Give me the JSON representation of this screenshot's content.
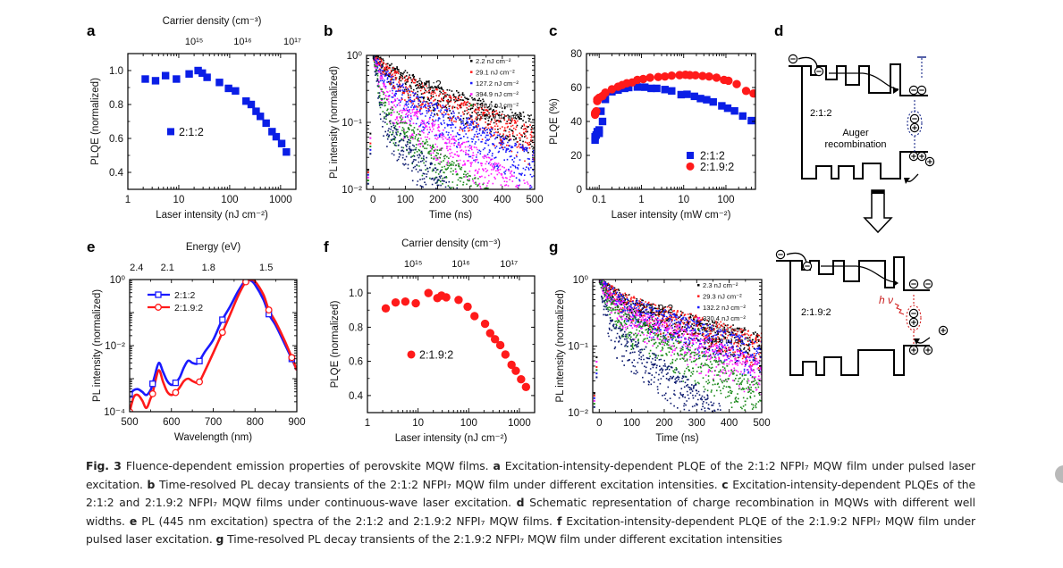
{
  "figure": {
    "panel_labels": [
      "a",
      "b",
      "c",
      "d",
      "e",
      "f",
      "g"
    ],
    "caption": {
      "fig_label": "Fig. 3",
      "segments": [
        {
          "bold": "",
          "text": " Fluence-dependent emission properties of perovskite MQW films. "
        },
        {
          "bold": "a",
          "text": " Excitation-intensity-dependent PLQE of the 2:1:2 NFPI₇ MQW film under pulsed laser excitation. "
        },
        {
          "bold": "b",
          "text": " Time-resolved PL decay transients of the 2:1:2 NFPI₇ MQW film under different excitation intensities. "
        },
        {
          "bold": "c",
          "text": " Excitation-intensity-dependent PLQEs of the 2:1:2 and 2:1.9:2 NFPI₇ MQW films under continuous-wave laser excitation. "
        },
        {
          "bold": "d",
          "text": " Schematic representation of charge recombination in MQWs with different well widths. "
        },
        {
          "bold": "e",
          "text": " PL (445 nm excitation) spectra of the 2:1:2 and 2:1.9:2 NFPI₇ MQW films. "
        },
        {
          "bold": "f",
          "text": " Excitation-intensity-dependent PLQE of the 2:1.9:2 NFPI₇ MQW film under pulsed laser excitation. "
        },
        {
          "bold": "g",
          "text": " Time-resolved PL decay transients of the 2:1.9:2 NFPI₇ MQW film under different excitation intensities"
        }
      ]
    },
    "diagram_d": {
      "top_label": "2:1:2",
      "top_annotation": "Auger\nrecombination",
      "bottom_label": "2:1.9:2",
      "photon_label": "h ν",
      "electron_symbol": "−",
      "hole_symbol": "+"
    }
  },
  "chart_data": [
    {
      "panel": "a",
      "type": "scatter",
      "xlabel": "Laser intensity (nJ cm⁻²)",
      "ylabel": "PLQE (normalized)",
      "top_xlabel": "Carrier density (cm⁻³)",
      "top_ticks": [
        "10¹⁵",
        "10¹⁶",
        "10¹⁷"
      ],
      "top_tick_x": [
        20,
        180,
        1700
      ],
      "xscale": "log",
      "xlim": [
        1,
        2000
      ],
      "ylim": [
        0.3,
        1.1
      ],
      "xticks": [
        1,
        10,
        100,
        1000
      ],
      "xticklabels": [
        "1",
        "10",
        "100",
        "1000"
      ],
      "yticks": [
        0.4,
        0.6,
        0.8,
        1.0
      ],
      "yticklabels": [
        "0.4",
        "0.6",
        "0.8",
        "1.0"
      ],
      "legend": [
        {
          "label": "2:1:2",
          "color": "#0a1ee6",
          "marker": "square"
        }
      ],
      "legend_position": "center-left",
      "series": [
        {
          "name": "2:1:2",
          "color": "#0a1ee6",
          "marker": "square",
          "x": [
            2.2,
            3.5,
            5.5,
            9,
            16,
            24,
            29,
            36,
            63,
            95,
            130,
            210,
            265,
            330,
            400,
            520,
            680,
            820,
            1050,
            1300
          ],
          "y": [
            0.95,
            0.94,
            0.97,
            0.95,
            0.98,
            1.0,
            0.985,
            0.96,
            0.93,
            0.895,
            0.88,
            0.82,
            0.8,
            0.76,
            0.73,
            0.69,
            0.64,
            0.61,
            0.57,
            0.52
          ]
        }
      ]
    },
    {
      "panel": "b",
      "type": "scatter",
      "xlabel": "Time (ns)",
      "ylabel": "PL intensity (normalized)",
      "xlim": [
        -20,
        500
      ],
      "ylim": [
        0.01,
        1
      ],
      "yscale": "log",
      "xticks": [
        0,
        100,
        200,
        300,
        400,
        500
      ],
      "xticklabels": [
        "0",
        "100",
        "200",
        "300",
        "400",
        "500"
      ],
      "yticks": [
        0.01,
        0.1,
        1
      ],
      "yticklabels": [
        "10⁻²",
        "10⁻¹",
        "10⁰"
      ],
      "annotation": "2:1:2",
      "legend_position": "top-right",
      "series": [
        {
          "name": "2.2 nJ cm⁻²",
          "color": "#000000",
          "tau_fast": 40,
          "a_fast": 0.45,
          "tau_slow": 260
        },
        {
          "name": "29.1 nJ cm⁻²",
          "color": "#ff1a1a",
          "tau_fast": 35,
          "a_fast": 0.5,
          "tau_slow": 230
        },
        {
          "name": "127.2 nJ cm⁻²",
          "color": "#1a1aff",
          "tau_fast": 25,
          "a_fast": 0.62,
          "tau_slow": 180
        },
        {
          "name": "394.9 nJ cm⁻²",
          "color": "#ff1aff",
          "tau_fast": 15,
          "a_fast": 0.75,
          "tau_slow": 140
        },
        {
          "name": "796.6 nJ cm⁻²",
          "color": "#1a8a1a",
          "tau_fast": 11,
          "a_fast": 0.83,
          "tau_slow": 110
        },
        {
          "name": "1259.0 nJ cm⁻²",
          "color": "#0c1a6e",
          "tau_fast": 9,
          "a_fast": 0.88,
          "tau_slow": 90
        }
      ]
    },
    {
      "panel": "c",
      "type": "scatter",
      "xlabel": "Laser intensity (mW cm⁻²)",
      "ylabel": "PLQE (%)",
      "xscale": "log",
      "xlim": [
        0.05,
        500
      ],
      "ylim": [
        0,
        80
      ],
      "xticks": [
        0.1,
        1,
        10,
        100
      ],
      "xticklabels": [
        "0.1",
        "1",
        "10",
        "100"
      ],
      "yticks": [
        0,
        20,
        40,
        60,
        80
      ],
      "yticklabels": [
        "0",
        "20",
        "40",
        "60",
        "80"
      ],
      "legend_position": "bottom-right",
      "series": [
        {
          "name": "2:1:2",
          "color": "#0a1ee6",
          "marker": "square",
          "x": [
            0.08,
            0.08,
            0.085,
            0.09,
            0.1,
            0.1,
            0.11,
            0.12,
            0.14,
            0.2,
            0.28,
            0.4,
            0.5,
            0.8,
            1.2,
            1.7,
            2.3,
            3.6,
            5.2,
            8.7,
            12,
            18,
            25,
            35,
            50,
            80,
            110,
            160,
            250,
            400
          ],
          "y": [
            29,
            31,
            32,
            34,
            33,
            35,
            46,
            40,
            53,
            57.5,
            58.5,
            59.5,
            60,
            60.3,
            60.2,
            59.5,
            59.5,
            58.8,
            58,
            55.8,
            56,
            54.8,
            53.5,
            52.8,
            51.5,
            49.2,
            47.8,
            46.2,
            43.2,
            40.5
          ]
        },
        {
          "name": "2:1.9:2",
          "color": "#ff1a1a",
          "marker": "circle",
          "x": [
            0.08,
            0.08,
            0.085,
            0.09,
            0.09,
            0.1,
            0.12,
            0.14,
            0.2,
            0.28,
            0.35,
            0.45,
            0.6,
            0.8,
            1.1,
            1.6,
            2.5,
            3.6,
            5.2,
            8,
            11,
            14,
            19,
            28,
            40,
            60,
            90,
            115,
            180,
            300,
            450
          ],
          "y": [
            45,
            44,
            46,
            52,
            53,
            54,
            55,
            57,
            59,
            60.5,
            61.5,
            62.5,
            63,
            64.5,
            65,
            65.8,
            66.2,
            66.5,
            67,
            67.3,
            67.5,
            67.3,
            67.2,
            66.8,
            66.5,
            65.8,
            64.5,
            64,
            62,
            58,
            56.5
          ]
        }
      ]
    },
    {
      "panel": "e",
      "type": "line",
      "xlabel": "Wavelength (nm)",
      "ylabel": "PL intensity (normalized)",
      "top_xlabel": "Energy (eV)",
      "top_ticks": [
        "2.4",
        "2.1",
        "1.8",
        "1.5"
      ],
      "top_tick_x": [
        516.6,
        590.4,
        688.8,
        826.6
      ],
      "xlim": [
        500,
        900
      ],
      "ylim": [
        0.0001,
        1
      ],
      "yscale": "log",
      "xticks": [
        500,
        600,
        700,
        800,
        900
      ],
      "xticklabels": [
        "500",
        "600",
        "700",
        "800",
        "900"
      ],
      "yticks": [
        0.0001,
        0.01,
        1
      ],
      "yticklabels": [
        "10⁻⁴",
        "10⁻²",
        "10⁰"
      ],
      "legend_position": "top-left",
      "series": [
        {
          "name": "2:1:2",
          "color": "#1a1aff",
          "marker": "open-square",
          "x": [
            500,
            510,
            520,
            530,
            540,
            550,
            555,
            560,
            570,
            580,
            590,
            600,
            610,
            620,
            630,
            640,
            650,
            660,
            667,
            680,
            700,
            720,
            740,
            760,
            778,
            790,
            800,
            820,
            833,
            850,
            870,
            890,
            900
          ],
          "y": [
            0.00033,
            0.00045,
            0.00048,
            0.0004,
            0.00032,
            0.00045,
            0.0007,
            0.0012,
            0.003,
            0.0016,
            0.00085,
            0.00065,
            0.00075,
            0.0011,
            0.0022,
            0.0035,
            0.003,
            0.0028,
            0.0034,
            0.0065,
            0.015,
            0.055,
            0.15,
            0.45,
            0.97,
            0.92,
            0.7,
            0.25,
            0.09,
            0.04,
            0.012,
            0.0035,
            0.0018
          ]
        },
        {
          "name": "2:1.9:2",
          "color": "#ff1a1a",
          "marker": "open-circle",
          "x": [
            500,
            510,
            520,
            530,
            540,
            550,
            555,
            560,
            570,
            580,
            590,
            600,
            610,
            620,
            630,
            640,
            650,
            660,
            667,
            680,
            700,
            720,
            740,
            760,
            778,
            790,
            800,
            820,
            833,
            850,
            870,
            890,
            900
          ],
          "y": [
            0.0001,
            0.00028,
            0.00032,
            0.00022,
            0.00013,
            0.00025,
            0.00035,
            0.0007,
            0.0018,
            0.0008,
            0.0004,
            0.00032,
            0.00038,
            0.00055,
            0.00085,
            0.001,
            0.00085,
            0.00075,
            0.0008,
            0.0017,
            0.006,
            0.022,
            0.085,
            0.33,
            0.85,
            0.98,
            0.88,
            0.35,
            0.12,
            0.05,
            0.015,
            0.0038,
            0.0018
          ]
        }
      ]
    },
    {
      "panel": "f",
      "type": "scatter",
      "xlabel": "Laser intensity (nJ cm⁻²)",
      "ylabel": "PLQE (normalized)",
      "top_xlabel": "Carrier density (cm⁻³)",
      "top_ticks": [
        "10¹⁵",
        "10¹⁶",
        "10¹⁷"
      ],
      "top_tick_x": [
        8,
        70,
        620
      ],
      "xscale": "log",
      "xlim": [
        1,
        2000
      ],
      "ylim": [
        0.3,
        1.1
      ],
      "xticks": [
        1,
        10,
        100,
        1000
      ],
      "xticklabels": [
        "1",
        "10",
        "100",
        "1000"
      ],
      "yticks": [
        0.4,
        0.6,
        0.8,
        1.0
      ],
      "yticklabels": [
        "0.4",
        "0.6",
        "0.8",
        "1.0"
      ],
      "legend": [
        {
          "label": "2:1.9:2",
          "color": "#ff1a1a",
          "marker": "circle"
        }
      ],
      "legend_position": "center-left",
      "series": [
        {
          "name": "2:1.9:2",
          "color": "#ff1a1a",
          "marker": "circle",
          "x": [
            2.3,
            3.6,
            5.6,
            9,
            16,
            24,
            29,
            36,
            63,
            95,
            130,
            210,
            265,
            330,
            420,
            530,
            700,
            850,
            1080,
            1350
          ],
          "y": [
            0.91,
            0.945,
            0.95,
            0.94,
            1.0,
            0.97,
            0.985,
            0.975,
            0.96,
            0.92,
            0.865,
            0.82,
            0.765,
            0.73,
            0.695,
            0.64,
            0.58,
            0.545,
            0.495,
            0.45
          ]
        }
      ]
    },
    {
      "panel": "g",
      "type": "scatter",
      "xlabel": "Time (ns)",
      "ylabel": "PL intensity (normalized)",
      "xlim": [
        -20,
        500
      ],
      "ylim": [
        0.01,
        1
      ],
      "yscale": "log",
      "xticks": [
        0,
        100,
        200,
        300,
        400,
        500
      ],
      "xticklabels": [
        "0",
        "100",
        "200",
        "300",
        "400",
        "500"
      ],
      "yticks": [
        0.01,
        0.1,
        1
      ],
      "yticklabels": [
        "10⁻²",
        "10⁻¹",
        "10⁰"
      ],
      "annotation": "2:1.9:2",
      "legend_position": "top-right",
      "series": [
        {
          "name": "2.3 nJ cm⁻²",
          "color": "#000000",
          "tau_fast": 40,
          "a_fast": 0.5,
          "tau_slow": 310
        },
        {
          "name": "29.3 nJ cm⁻²",
          "color": "#ff1a1a",
          "tau_fast": 35,
          "a_fast": 0.48,
          "tau_slow": 300
        },
        {
          "name": "132.2 nJ cm⁻²",
          "color": "#1a1aff",
          "tau_fast": 30,
          "a_fast": 0.5,
          "tau_slow": 260
        },
        {
          "name": "330.4 nJ cm⁻²",
          "color": "#ff1aff",
          "tau_fast": 25,
          "a_fast": 0.58,
          "tau_slow": 210
        },
        {
          "name": "723.2 nJ cm⁻²",
          "color": "#1a8a1a",
          "tau_fast": 18,
          "a_fast": 0.66,
          "tau_slow": 170
        },
        {
          "name": "1334.0 nJ cm⁻²",
          "color": "#0c1a6e",
          "tau_fast": 11,
          "a_fast": 0.8,
          "tau_slow": 120
        }
      ]
    }
  ]
}
